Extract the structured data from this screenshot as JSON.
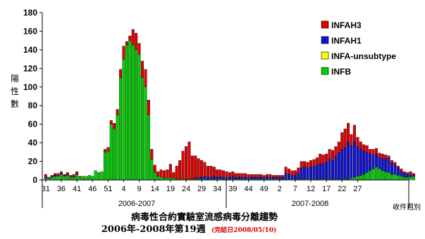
{
  "chart_data": {
    "type": "bar",
    "stacked": true,
    "ylabel": "陽性數",
    "xlabel": "收件週別",
    "title": "病毒性合約實驗室流感病毒分離趨勢",
    "subtitle": "2006年-2008年第19週",
    "subtitle_note": "(完結日2008/05/10)",
    "ylim": [
      0,
      180
    ],
    "yticks": [
      "0",
      "20",
      "40",
      "60",
      "80",
      "100",
      "120",
      "140",
      "160",
      "180"
    ],
    "xtick_labels": [
      "31",
      "36",
      "41",
      "46",
      "51",
      "4",
      "9",
      "14",
      "19",
      "24",
      "29",
      "34",
      "39",
      "44",
      "49",
      "2",
      "7",
      "12",
      "17",
      "22",
      "27"
    ],
    "seasons": [
      "2006-2007",
      "2007-2008"
    ],
    "legend_position": "top-right",
    "series": [
      {
        "name": "INFAH3",
        "color": "#e00000",
        "values": [
          3,
          1,
          1,
          2,
          2,
          2,
          1,
          2,
          2,
          2,
          2,
          1,
          0,
          0,
          0,
          0,
          0,
          0,
          0,
          3,
          4,
          4,
          6,
          6,
          9,
          14,
          4,
          5,
          17,
          18,
          12,
          18,
          19,
          16,
          11,
          8,
          5,
          8,
          8,
          9,
          15,
          6,
          14,
          20,
          30,
          35,
          40,
          25,
          24,
          20,
          18,
          15,
          12,
          12,
          10,
          8,
          7,
          7,
          6,
          5,
          5,
          4,
          4,
          4,
          4,
          3,
          3,
          3,
          3,
          3,
          2,
          3,
          3,
          2,
          2,
          2,
          2,
          7,
          6,
          5,
          5,
          6,
          7,
          6,
          6,
          7,
          7,
          8,
          10,
          10,
          9,
          10,
          11,
          10,
          12,
          18,
          20,
          20,
          12,
          18,
          10,
          8,
          7,
          7,
          5,
          6,
          6,
          5,
          5,
          4,
          3,
          3,
          3,
          2,
          3,
          2,
          2,
          3,
          2
        ]
      },
      {
        "name": "INFAH1",
        "color": "#1010d0",
        "values": [
          1,
          0,
          1,
          1,
          1,
          1,
          1,
          1,
          0,
          1,
          1,
          0,
          0,
          0,
          0,
          0,
          0,
          0,
          0,
          0,
          0,
          0,
          0,
          0,
          0,
          0,
          0,
          0,
          0,
          0,
          0,
          0,
          0,
          0,
          0,
          0,
          0,
          0,
          0,
          0,
          0,
          0,
          0,
          0,
          0,
          0,
          0,
          0,
          1,
          2,
          2,
          3,
          2,
          2,
          3,
          2,
          3,
          2,
          2,
          2,
          3,
          2,
          2,
          2,
          2,
          2,
          2,
          2,
          2,
          2,
          2,
          2,
          2,
          2,
          2,
          2,
          2,
          6,
          5,
          4,
          4,
          6,
          12,
          13,
          12,
          13,
          14,
          15,
          17,
          16,
          18,
          22,
          20,
          25,
          28,
          32,
          34,
          40,
          35,
          38,
          32,
          28,
          25,
          22,
          18,
          15,
          14,
          12,
          13,
          14,
          15,
          12,
          10,
          8,
          5,
          4,
          3,
          3,
          1
        ]
      },
      {
        "name": "INFA-unsubtype",
        "color": "#ffff00",
        "values": [
          0,
          0,
          0,
          0,
          0,
          0,
          0,
          0,
          0,
          0,
          0,
          0,
          0,
          0,
          0,
          0,
          0,
          0,
          0,
          0,
          0,
          0,
          0,
          0,
          0,
          0,
          0,
          0,
          0,
          0,
          0,
          0,
          0,
          0,
          0,
          0,
          0,
          0,
          0,
          0,
          0,
          0,
          0,
          0,
          0,
          0,
          0,
          0,
          0,
          0,
          0,
          0,
          0,
          0,
          0,
          0,
          0,
          0,
          0,
          0,
          0,
          0,
          0,
          0,
          0,
          0,
          0,
          0,
          0,
          0,
          0,
          0,
          0,
          0,
          0,
          0,
          0,
          0,
          0,
          0,
          0,
          0,
          0,
          0,
          0,
          0,
          0,
          0,
          0,
          0,
          0,
          0,
          0,
          0,
          0,
          0,
          0,
          0,
          0,
          0,
          0,
          0,
          0,
          0,
          0,
          0,
          0,
          0,
          0,
          0,
          0,
          0,
          0,
          0,
          0,
          0,
          0,
          0,
          0
        ]
      },
      {
        "name": "INFB",
        "color": "#00cc00",
        "values": [
          2,
          2,
          3,
          4,
          4,
          6,
          4,
          5,
          3,
          3,
          6,
          3,
          4,
          4,
          5,
          4,
          10,
          8,
          9,
          30,
          31,
          60,
          55,
          70,
          110,
          130,
          145,
          150,
          145,
          140,
          135,
          110,
          100,
          70,
          22,
          8,
          4,
          3,
          2,
          2,
          2,
          2,
          1,
          1,
          1,
          1,
          1,
          1,
          1,
          1,
          1,
          1,
          1,
          1,
          1,
          1,
          1,
          1,
          1,
          1,
          1,
          1,
          1,
          1,
          1,
          1,
          1,
          1,
          1,
          1,
          1,
          1,
          1,
          1,
          1,
          1,
          1,
          1,
          1,
          1,
          1,
          1,
          1,
          1,
          1,
          1,
          1,
          1,
          1,
          1,
          1,
          1,
          1,
          1,
          1,
          1,
          1,
          1,
          2,
          3,
          4,
          5,
          6,
          8,
          10,
          12,
          14,
          12,
          10,
          9,
          8,
          6,
          6,
          5,
          4,
          3,
          3,
          3,
          4
        ]
      }
    ]
  }
}
